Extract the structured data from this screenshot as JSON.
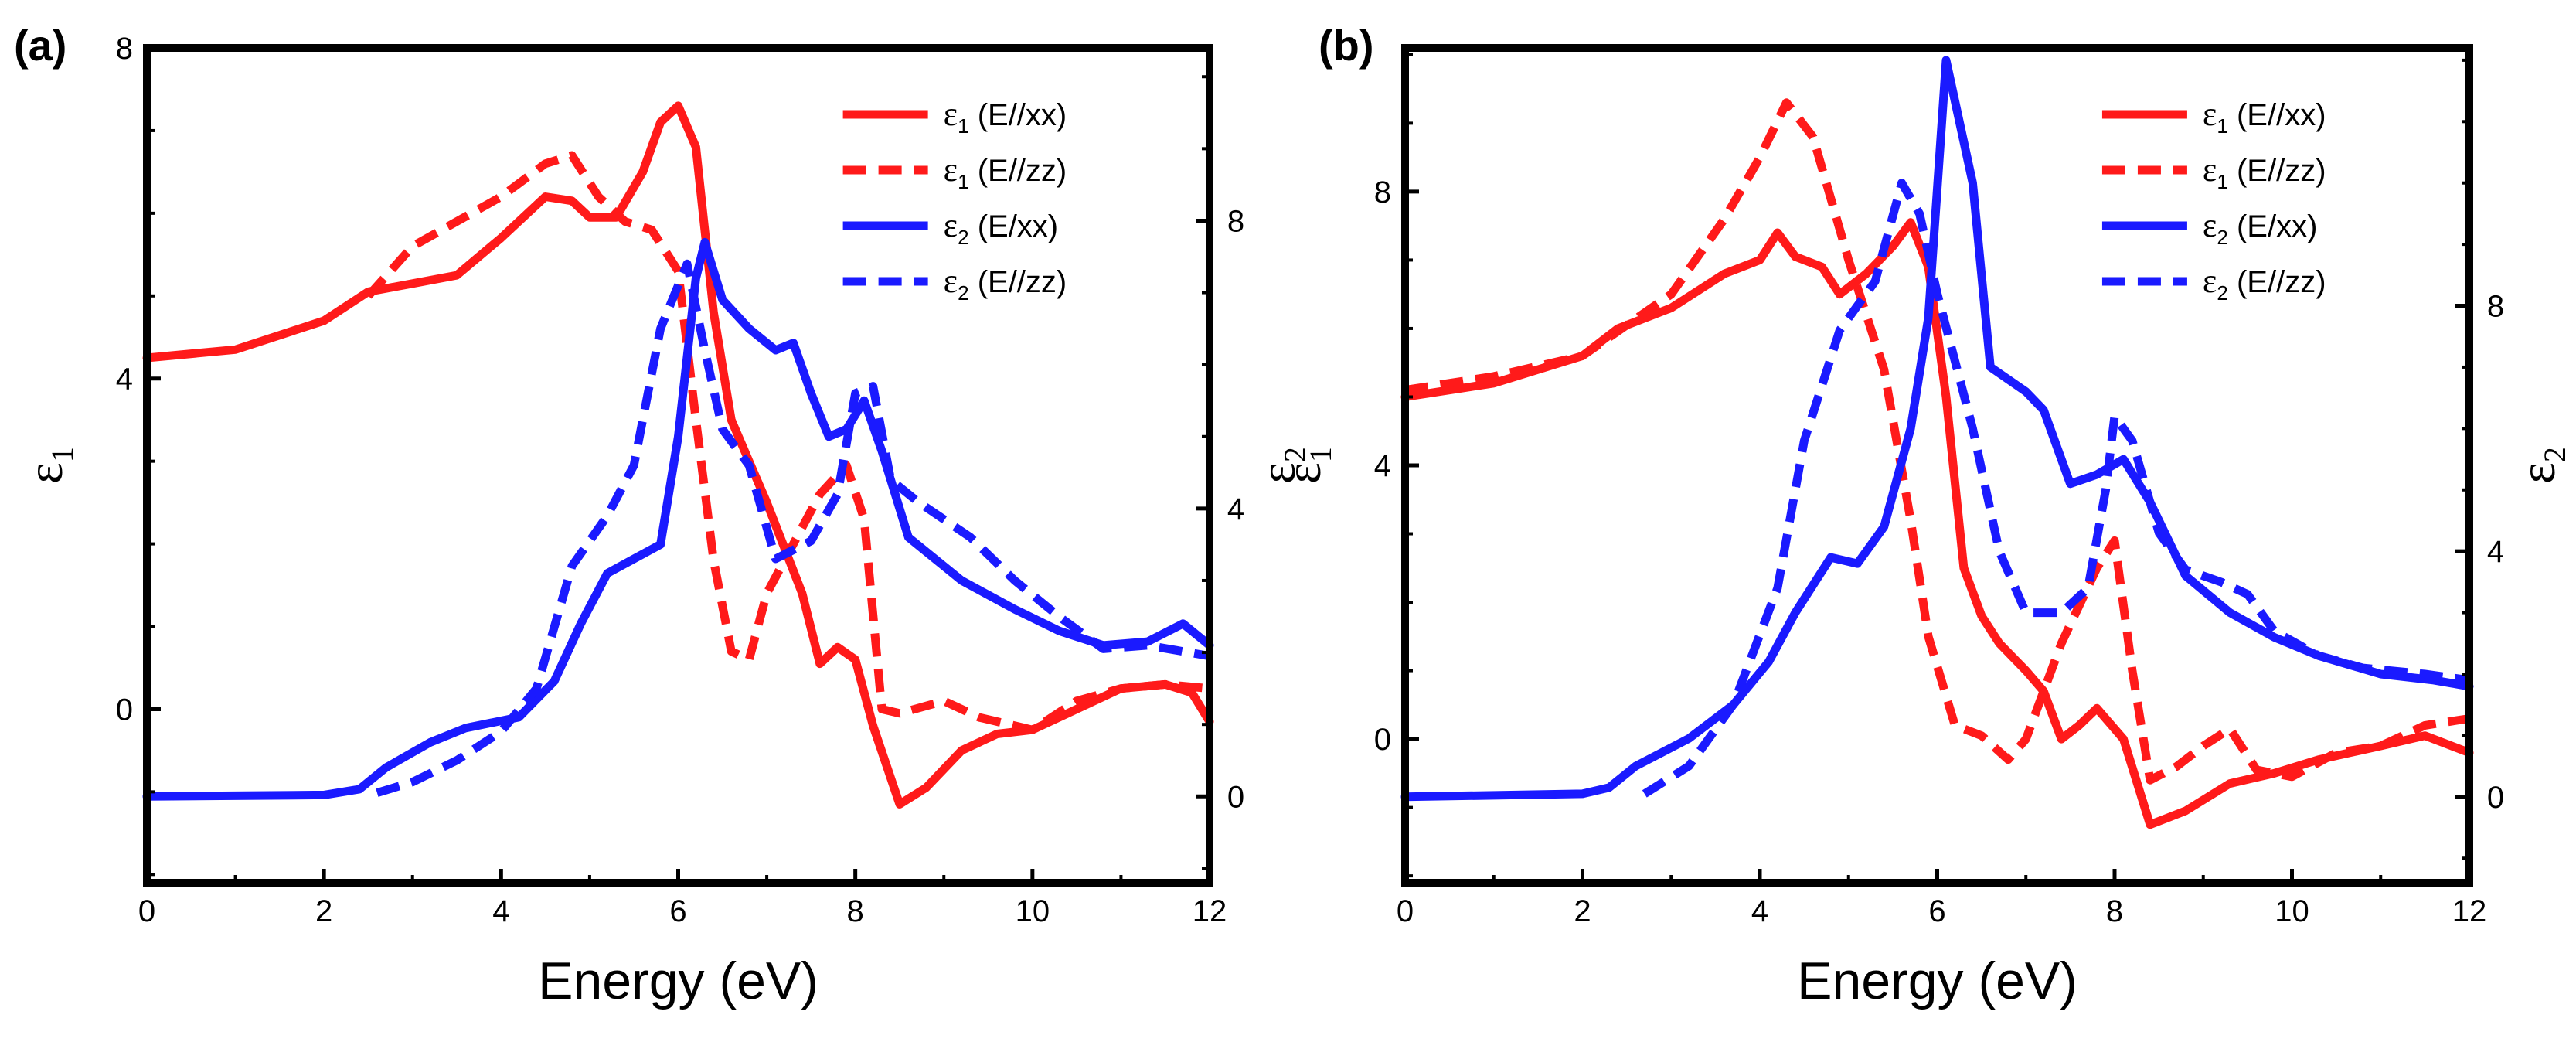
{
  "colors": {
    "red": "#ff1a1a",
    "blue": "#1a1aff",
    "axis": "#000000"
  },
  "chart_data": [
    {
      "type": "line",
      "panel_label": "(a)",
      "xlabel": "Energy (eV)",
      "ylabel_left": {
        "main": "ε",
        "sub": "1"
      },
      "ylabel_right": {
        "main": "ε",
        "sub": "2"
      },
      "xlim": [
        0,
        12
      ],
      "ylim_left": [
        -2.1,
        8
      ],
      "ylim_right": [
        -1.2,
        10.4
      ],
      "x_ticks": [
        0,
        2,
        4,
        6,
        8,
        10,
        12
      ],
      "y_ticks_left": [
        0,
        4,
        8
      ],
      "y_ticks_right": [
        0,
        4,
        8
      ],
      "x_tick_labels": [
        "0",
        "2",
        "4",
        "6",
        "8",
        "10",
        "12"
      ],
      "y_tick_labels_left": [
        "0",
        "4",
        "8"
      ],
      "y_tick_labels_right": [
        "0",
        "4",
        "8"
      ],
      "legend_position": "top-right",
      "series": [
        {
          "name": "ε1 (E//xx)",
          "legend_main": "ε",
          "legend_sub": "1",
          "legend_rest": " (E//xx)",
          "axis": "left",
          "color": "red",
          "dash": "solid",
          "points": [
            [
              0,
              4.25
            ],
            [
              1,
              4.35
            ],
            [
              2,
              4.7
            ],
            [
              2.5,
              5.05
            ],
            [
              3,
              5.15
            ],
            [
              3.5,
              5.25
            ],
            [
              4,
              5.7
            ],
            [
              4.5,
              6.2
            ],
            [
              4.8,
              6.15
            ],
            [
              5,
              5.95
            ],
            [
              5.3,
              5.95
            ],
            [
              5.6,
              6.5
            ],
            [
              5.8,
              7.1
            ],
            [
              6,
              7.3
            ],
            [
              6.2,
              6.8
            ],
            [
              6.4,
              4.8
            ],
            [
              6.6,
              3.5
            ],
            [
              7,
              2.5
            ],
            [
              7.4,
              1.4
            ],
            [
              7.6,
              0.55
            ],
            [
              7.8,
              0.75
            ],
            [
              8,
              0.6
            ],
            [
              8.2,
              -0.2
            ],
            [
              8.5,
              -1.15
            ],
            [
              8.8,
              -0.95
            ],
            [
              9.2,
              -0.5
            ],
            [
              9.6,
              -0.3
            ],
            [
              10,
              -0.25
            ],
            [
              10.5,
              0.0
            ],
            [
              11,
              0.25
            ],
            [
              11.5,
              0.3
            ],
            [
              11.8,
              0.2
            ],
            [
              12,
              -0.15
            ]
          ]
        },
        {
          "name": "ε1 (E//zz)",
          "legend_main": "ε",
          "legend_sub": "1",
          "legend_rest": " (E//zz)",
          "axis": "left",
          "color": "red",
          "dash": "dashed",
          "points": [
            [
              2.5,
              5.0
            ],
            [
              3,
              5.6
            ],
            [
              3.5,
              5.9
            ],
            [
              4,
              6.2
            ],
            [
              4.5,
              6.6
            ],
            [
              4.8,
              6.7
            ],
            [
              5.1,
              6.2
            ],
            [
              5.4,
              5.9
            ],
            [
              5.7,
              5.8
            ],
            [
              6,
              5.3
            ],
            [
              6.2,
              3.5
            ],
            [
              6.4,
              1.8
            ],
            [
              6.6,
              0.7
            ],
            [
              6.8,
              0.6
            ],
            [
              7,
              1.4
            ],
            [
              7.3,
              2.0
            ],
            [
              7.6,
              2.6
            ],
            [
              7.9,
              2.95
            ],
            [
              8.1,
              2.3
            ],
            [
              8.3,
              0.0
            ],
            [
              8.5,
              -0.05
            ],
            [
              9,
              0.1
            ],
            [
              9.4,
              -0.1
            ],
            [
              10,
              -0.25
            ],
            [
              10.5,
              0.1
            ],
            [
              11,
              0.25
            ],
            [
              11.5,
              0.3
            ],
            [
              12,
              0.25
            ]
          ]
        },
        {
          "name": "ε2 (E/xx)",
          "legend_main": "ε",
          "legend_sub": "2",
          "legend_rest": " (E/xx)",
          "axis": "right",
          "color": "blue",
          "dash": "solid",
          "points": [
            [
              0,
              0
            ],
            [
              2,
              0.02
            ],
            [
              2.4,
              0.1
            ],
            [
              2.7,
              0.4
            ],
            [
              3.2,
              0.75
            ],
            [
              3.6,
              0.95
            ],
            [
              4.2,
              1.1
            ],
            [
              4.6,
              1.6
            ],
            [
              4.9,
              2.4
            ],
            [
              5.2,
              3.1
            ],
            [
              5.5,
              3.3
            ],
            [
              5.8,
              3.5
            ],
            [
              6,
              5.0
            ],
            [
              6.2,
              7.2
            ],
            [
              6.3,
              7.7
            ],
            [
              6.5,
              6.9
            ],
            [
              6.8,
              6.5
            ],
            [
              7.1,
              6.2
            ],
            [
              7.3,
              6.3
            ],
            [
              7.5,
              5.6
            ],
            [
              7.7,
              5.0
            ],
            [
              7.9,
              5.1
            ],
            [
              8.1,
              5.5
            ],
            [
              8.3,
              4.8
            ],
            [
              8.6,
              3.6
            ],
            [
              9.2,
              3.0
            ],
            [
              9.8,
              2.6
            ],
            [
              10.3,
              2.3
            ],
            [
              10.8,
              2.1
            ],
            [
              11.3,
              2.15
            ],
            [
              11.7,
              2.4
            ],
            [
              12,
              2.1
            ]
          ]
        },
        {
          "name": "ε2 (E//zz)",
          "legend_main": "ε",
          "legend_sub": "2",
          "legend_rest": " (E//zz)",
          "axis": "right",
          "color": "blue",
          "dash": "dashed",
          "points": [
            [
              2.6,
              0.05
            ],
            [
              3,
              0.2
            ],
            [
              3.5,
              0.5
            ],
            [
              4,
              0.9
            ],
            [
              4.4,
              1.5
            ],
            [
              4.8,
              3.2
            ],
            [
              5.2,
              3.9
            ],
            [
              5.5,
              4.6
            ],
            [
              5.8,
              6.5
            ],
            [
              6.1,
              7.4
            ],
            [
              6.3,
              6.2
            ],
            [
              6.5,
              5.1
            ],
            [
              6.8,
              4.6
            ],
            [
              7.1,
              3.3
            ],
            [
              7.5,
              3.55
            ],
            [
              7.8,
              4.2
            ],
            [
              8,
              5.6
            ],
            [
              8.2,
              5.7
            ],
            [
              8.4,
              4.4
            ],
            [
              8.7,
              4.1
            ],
            [
              9.3,
              3.6
            ],
            [
              9.8,
              3.0
            ],
            [
              10.3,
              2.5
            ],
            [
              10.8,
              2.05
            ],
            [
              11.3,
              2.1
            ],
            [
              12,
              1.95
            ]
          ]
        }
      ]
    },
    {
      "type": "line",
      "panel_label": "(b)",
      "xlabel": "Energy (eV)",
      "ylabel_left": {
        "main": "ε",
        "sub": "1"
      },
      "ylabel_right": {
        "main": "ε",
        "sub": "2"
      },
      "xlim": [
        0,
        12
      ],
      "ylim_left": [
        -2.1,
        10.1
      ],
      "ylim_right": [
        -1.4,
        12.2
      ],
      "x_ticks": [
        0,
        2,
        4,
        6,
        8,
        10,
        12
      ],
      "y_ticks_left": [
        0,
        4,
        8
      ],
      "y_ticks_right": [
        0,
        4,
        8
      ],
      "x_tick_labels": [
        "0",
        "2",
        "4",
        "6",
        "8",
        "10",
        "12"
      ],
      "y_tick_labels_left": [
        "0",
        "4",
        "8"
      ],
      "y_tick_labels_right": [
        "0",
        "4",
        "8"
      ],
      "legend_position": "top-right",
      "series": [
        {
          "name": "ε1 (E//xx)",
          "legend_main": "ε",
          "legend_sub": "1",
          "legend_rest": " (E//xx)",
          "axis": "left",
          "color": "red",
          "dash": "solid",
          "points": [
            [
              0,
              5.0
            ],
            [
              1,
              5.2
            ],
            [
              2,
              5.6
            ],
            [
              2.4,
              6.0
            ],
            [
              3,
              6.3
            ],
            [
              3.6,
              6.8
            ],
            [
              4,
              7.0
            ],
            [
              4.2,
              7.4
            ],
            [
              4.4,
              7.05
            ],
            [
              4.7,
              6.9
            ],
            [
              4.9,
              6.5
            ],
            [
              5.2,
              6.8
            ],
            [
              5.5,
              7.2
            ],
            [
              5.7,
              7.55
            ],
            [
              5.9,
              6.9
            ],
            [
              6.1,
              5.0
            ],
            [
              6.3,
              2.5
            ],
            [
              6.5,
              1.8
            ],
            [
              6.7,
              1.4
            ],
            [
              7,
              1.0
            ],
            [
              7.2,
              0.7
            ],
            [
              7.4,
              0.0
            ],
            [
              7.6,
              0.2
            ],
            [
              7.8,
              0.45
            ],
            [
              8.1,
              0.0
            ],
            [
              8.4,
              -1.25
            ],
            [
              8.8,
              -1.05
            ],
            [
              9.3,
              -0.65
            ],
            [
              9.8,
              -0.5
            ],
            [
              10.3,
              -0.3
            ],
            [
              11,
              -0.1
            ],
            [
              11.5,
              0.05
            ],
            [
              12,
              -0.2
            ]
          ]
        },
        {
          "name": "ε1 (E//zz)",
          "legend_main": "ε",
          "legend_sub": "1",
          "legend_rest": " (E//zz)",
          "axis": "left",
          "color": "red",
          "dash": "dashed",
          "points": [
            [
              0,
              5.1
            ],
            [
              1,
              5.3
            ],
            [
              2,
              5.6
            ],
            [
              3,
              6.5
            ],
            [
              3.6,
              7.6
            ],
            [
              4,
              8.5
            ],
            [
              4.3,
              9.3
            ],
            [
              4.6,
              8.8
            ],
            [
              5,
              7.0
            ],
            [
              5.4,
              5.4
            ],
            [
              5.7,
              3.2
            ],
            [
              5.9,
              1.5
            ],
            [
              6.2,
              0.2
            ],
            [
              6.5,
              0.05
            ],
            [
              6.8,
              -0.3
            ],
            [
              7,
              0.0
            ],
            [
              7.4,
              1.4
            ],
            [
              7.8,
              2.5
            ],
            [
              8,
              2.9
            ],
            [
              8.2,
              1.0
            ],
            [
              8.4,
              -0.6
            ],
            [
              8.7,
              -0.4
            ],
            [
              9,
              -0.1
            ],
            [
              9.3,
              0.15
            ],
            [
              9.6,
              -0.45
            ],
            [
              10,
              -0.55
            ],
            [
              10.5,
              -0.2
            ],
            [
              11,
              -0.1
            ],
            [
              11.5,
              0.2
            ],
            [
              12,
              0.3
            ]
          ]
        },
        {
          "name": "ε2 (E/xx)",
          "legend_main": "ε",
          "legend_sub": "2",
          "legend_rest": " (E/xx)",
          "axis": "right",
          "color": "blue",
          "dash": "solid",
          "points": [
            [
              0,
              0
            ],
            [
              2,
              0.05
            ],
            [
              2.3,
              0.15
            ],
            [
              2.6,
              0.5
            ],
            [
              3.2,
              0.95
            ],
            [
              3.7,
              1.5
            ],
            [
              4.1,
              2.2
            ],
            [
              4.4,
              3.0
            ],
            [
              4.8,
              3.9
            ],
            [
              5.1,
              3.8
            ],
            [
              5.4,
              4.4
            ],
            [
              5.7,
              6.0
            ],
            [
              5.9,
              7.8
            ],
            [
              6.1,
              12.0
            ],
            [
              6.4,
              10.0
            ],
            [
              6.6,
              7.0
            ],
            [
              7,
              6.6
            ],
            [
              7.2,
              6.3
            ],
            [
              7.5,
              5.1
            ],
            [
              7.8,
              5.25
            ],
            [
              8.1,
              5.5
            ],
            [
              8.4,
              4.8
            ],
            [
              8.8,
              3.6
            ],
            [
              9.3,
              3.0
            ],
            [
              9.8,
              2.6
            ],
            [
              10.3,
              2.3
            ],
            [
              11,
              2.0
            ],
            [
              11.6,
              1.9
            ],
            [
              12,
              1.8
            ]
          ]
        },
        {
          "name": "ε2 (E//zz)",
          "legend_main": "ε",
          "legend_sub": "2",
          "legend_rest": " (E//zz)",
          "axis": "right",
          "color": "blue",
          "dash": "dashed",
          "points": [
            [
              2.7,
              0.05
            ],
            [
              3.2,
              0.5
            ],
            [
              3.7,
              1.5
            ],
            [
              4.2,
              3.4
            ],
            [
              4.5,
              5.8
            ],
            [
              4.9,
              7.6
            ],
            [
              5.3,
              8.4
            ],
            [
              5.6,
              10.0
            ],
            [
              5.8,
              9.5
            ],
            [
              6,
              8.2
            ],
            [
              6.4,
              6.0
            ],
            [
              6.7,
              4.0
            ],
            [
              7,
              3.0
            ],
            [
              7.4,
              3.0
            ],
            [
              7.7,
              3.4
            ],
            [
              7.9,
              5.0
            ],
            [
              8,
              6.2
            ],
            [
              8.2,
              5.8
            ],
            [
              8.5,
              4.3
            ],
            [
              8.8,
              3.7
            ],
            [
              9.2,
              3.5
            ],
            [
              9.5,
              3.3
            ],
            [
              9.8,
              2.7
            ],
            [
              10.3,
              2.3
            ],
            [
              10.8,
              2.1
            ],
            [
              11.5,
              2.0
            ],
            [
              12,
              1.9
            ]
          ]
        }
      ]
    }
  ]
}
